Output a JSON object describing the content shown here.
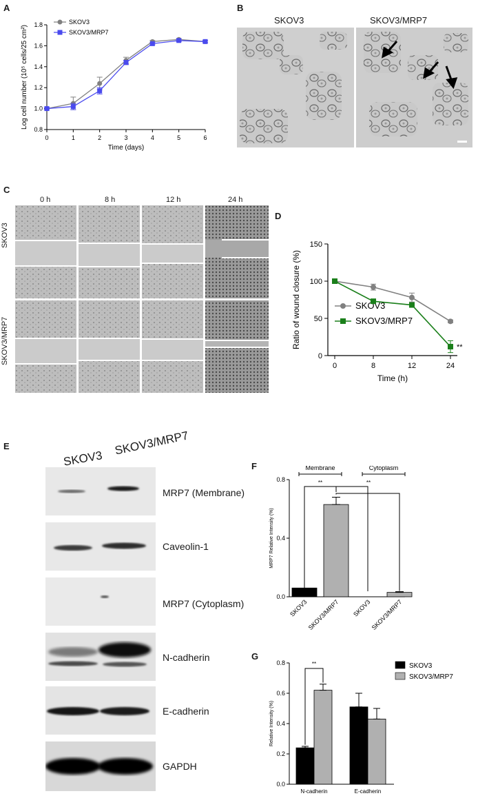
{
  "panels": {
    "a": {
      "letter": "A"
    },
    "b": {
      "letter": "B",
      "labels": [
        "SKOV3",
        "SKOV3/MRP7"
      ]
    },
    "c": {
      "letter": "C",
      "times": [
        "0 h",
        "8 h",
        "12 h",
        "24 h"
      ],
      "rows": [
        "SKOV3",
        "SKOV3/MRP7"
      ]
    },
    "d": {
      "letter": "D"
    },
    "e": {
      "letter": "E",
      "lanes": [
        "SKOV3",
        "SKOV3/MRP7"
      ],
      "proteins": [
        "MRP7 (Membrane)",
        "Caveolin-1",
        "MRP7 (Cytoplasm)",
        "N-cadherin",
        "E-cadherin",
        "GAPDH"
      ]
    },
    "f": {
      "letter": "F",
      "groups": [
        "Membrane",
        "Cytoplasm"
      ]
    },
    "g": {
      "letter": "G"
    }
  },
  "chart_data": [
    {
      "id": "A",
      "type": "line",
      "xlabel": "Time (days)",
      "ylabel": "Log cell number (10⁵ cells/25 cm²)",
      "xlim": [
        0,
        6
      ],
      "ylim": [
        0.8,
        1.8
      ],
      "xticks": [
        "0",
        "1",
        "2",
        "3",
        "4",
        "5",
        "6"
      ],
      "yticks": [
        "0.8",
        "1.0",
        "1.2",
        "1.4",
        "1.6",
        "1.8"
      ],
      "legend": "top-left",
      "x": [
        0,
        1,
        2,
        3,
        4,
        5,
        6
      ],
      "series": [
        {
          "name": "SKOV3",
          "color": "#808080",
          "marker": "circle",
          "values": [
            1.0,
            1.05,
            1.24,
            1.46,
            1.64,
            1.66,
            1.64
          ],
          "errors": [
            0.01,
            0.06,
            0.06,
            0.03,
            0.01,
            0.01,
            0.01
          ]
        },
        {
          "name": "SKOV3/MRP7",
          "color": "#4a4aee",
          "marker": "square",
          "values": [
            1.0,
            1.02,
            1.17,
            1.44,
            1.62,
            1.65,
            1.64
          ],
          "errors": [
            0.01,
            0.03,
            0.03,
            0.02,
            0.01,
            0.01,
            0.01
          ]
        }
      ]
    },
    {
      "id": "D",
      "type": "line",
      "xlabel": "Time (h)",
      "ylabel": "Ratio of wound closure (%)",
      "ylim": [
        0,
        150
      ],
      "xticks": [
        "0",
        "8",
        "12",
        "24"
      ],
      "yticks": [
        "0",
        "50",
        "100",
        "150"
      ],
      "legend": "bottom-left",
      "categories": [
        "0",
        "8",
        "12",
        "24"
      ],
      "series": [
        {
          "name": "SKOV3",
          "color": "#808080",
          "marker": "circle",
          "values": [
            100,
            92,
            78,
            46
          ],
          "errors": [
            0,
            4,
            6,
            2
          ]
        },
        {
          "name": "SKOV3/MRP7",
          "color": "#1a7f1a",
          "marker": "square",
          "values": [
            100,
            73,
            68,
            12
          ],
          "errors": [
            0,
            2,
            2,
            8
          ]
        }
      ],
      "annotation": "**"
    },
    {
      "id": "F",
      "type": "bar",
      "ylabel": "MRP7 Relative Intensity (%)",
      "ylim": [
        0,
        0.8
      ],
      "yticks": [
        "0.0",
        "0.4",
        "0.8"
      ],
      "categories": [
        "SKOV3",
        "SKOV3/MRP7",
        "SKOV3",
        "SKOV3/MRP7"
      ],
      "values": [
        0.06,
        0.63,
        0.0,
        0.03
      ],
      "errors": [
        0.0,
        0.05,
        0.0,
        0.005
      ],
      "colors": [
        "#000000",
        "#b0b0b0",
        "#000000",
        "#b0b0b0"
      ],
      "significance": [
        "**",
        "**"
      ]
    },
    {
      "id": "G",
      "type": "bar",
      "ylabel": "Relative Intensity (%)",
      "ylim": [
        0,
        0.8
      ],
      "yticks": [
        "0.0",
        "0.2",
        "0.4",
        "0.6",
        "0.8"
      ],
      "categories": [
        "N-cadherin",
        "E-cadherin"
      ],
      "legend": "top-right",
      "series": [
        {
          "name": "SKOV3",
          "color": "#000000",
          "values": [
            0.24,
            0.51
          ],
          "errors": [
            0.01,
            0.09
          ]
        },
        {
          "name": "SKOV3/MRP7",
          "color": "#b0b0b0",
          "values": [
            0.62,
            0.43
          ],
          "errors": [
            0.04,
            0.07
          ]
        }
      ],
      "significance": "**"
    }
  ]
}
